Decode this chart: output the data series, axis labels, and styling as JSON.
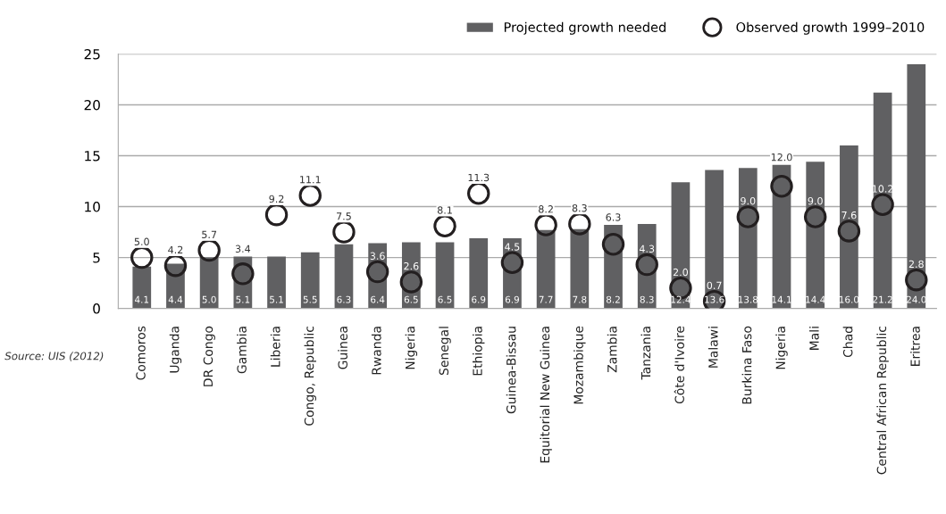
{
  "chart_data": {
    "type": "bar",
    "categories": [
      "Comoros",
      "Uganda",
      "DR Congo",
      "Gambia",
      "Liberia",
      "Congo, Republic",
      "Guinea",
      "Rwanda",
      "Nigeria",
      "Senegal",
      "Ethiopia",
      "Guinea-Bissau",
      "Equitorial New Guinea",
      "Mozambique",
      "Zambia",
      "Tanzania",
      "Côte d'Ivoire",
      "Malawi",
      "Burkina Faso",
      "Nigeria",
      "Mali",
      "Chad",
      "Central African Republic",
      "Eritrea"
    ],
    "series": [
      {
        "name": "Projected growth needed",
        "color": "#606062",
        "values": [
          4.1,
          4.4,
          5.0,
          5.1,
          5.1,
          5.5,
          6.3,
          6.4,
          6.5,
          6.5,
          6.9,
          6.9,
          7.7,
          7.8,
          8.2,
          8.3,
          12.4,
          13.6,
          13.8,
          14.1,
          14.4,
          16.0,
          21.2,
          24.0
        ],
        "value_labels": [
          "4.1",
          "4.4",
          "5.0",
          "5.1",
          "5.1",
          "5.5",
          "6.3",
          "6.4",
          "6.5",
          "6.5",
          "6.9",
          "6.9",
          "7.7",
          "7.8",
          "8.2",
          "8.3",
          "12.4",
          "13.6",
          "13.8",
          "14.1",
          "14.4",
          "16.0",
          "21.2",
          "24.0"
        ]
      },
      {
        "name": "Observed growth 1999–2010",
        "type": "scatter",
        "marker": "circle",
        "color": "#231f20",
        "values": [
          5.0,
          4.2,
          5.7,
          3.4,
          9.2,
          11.1,
          7.5,
          3.6,
          2.6,
          8.1,
          11.3,
          4.5,
          8.2,
          8.3,
          6.3,
          4.3,
          2.0,
          0.7,
          9.0,
          12.0,
          9.0,
          7.6,
          10.2,
          2.8
        ],
        "value_labels": [
          "5.0",
          "4.2",
          "5.7",
          "3.4",
          "9.2",
          "11.1",
          "7.5",
          "3.6",
          "2.6",
          "8.1",
          "11.3",
          "4.5",
          "8.2",
          "8.3",
          "6.3",
          "4.3",
          "2.0",
          "0.7",
          "9.0",
          "12.0",
          "9.0",
          "7.6",
          "10.2",
          "2.8"
        ]
      }
    ],
    "ylim": [
      0,
      25
    ],
    "yticks": [
      0,
      5,
      10,
      15,
      20,
      25
    ],
    "grid": "y",
    "legend": "top right",
    "annotations": [
      "Source: UIS (2012)"
    ]
  }
}
